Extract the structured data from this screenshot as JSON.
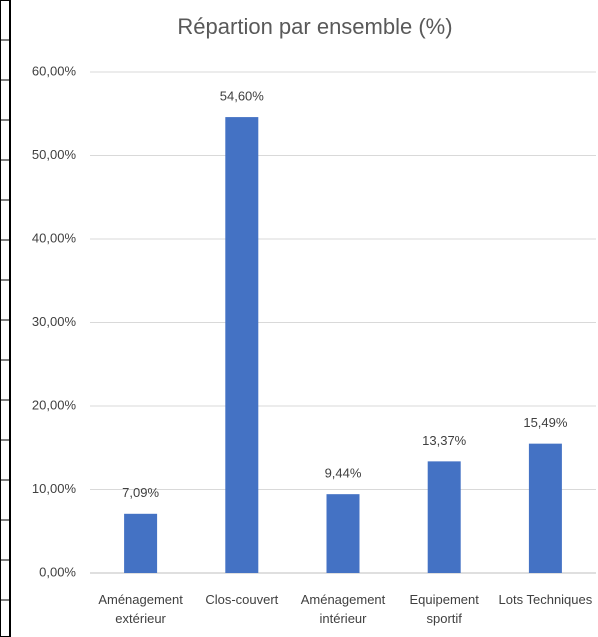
{
  "chart_data": {
    "type": "bar",
    "title": "Répartion par ensemble (%)",
    "categories": [
      "Aménagement extérieur",
      "Clos-couvert",
      "Aménagement intérieur",
      "Equipement sportif",
      "Lots Techniques"
    ],
    "values": [
      7.09,
      54.6,
      9.44,
      13.37,
      15.49
    ],
    "value_labels": [
      "7,09%",
      "54,60%",
      "9,44%",
      "13,37%",
      "15,49%"
    ],
    "color": "#4472c4",
    "ylim": [
      0,
      60
    ],
    "yticks": [
      {
        "value": 0,
        "label": "0,00%"
      },
      {
        "value": 10,
        "label": "10,00%"
      },
      {
        "value": 20,
        "label": "20,00%"
      },
      {
        "value": 30,
        "label": "30,00%"
      },
      {
        "value": 40,
        "label": "40,00%"
      },
      {
        "value": 50,
        "label": "50,00%"
      },
      {
        "value": 60,
        "label": "60,00%"
      }
    ],
    "grid": true
  }
}
